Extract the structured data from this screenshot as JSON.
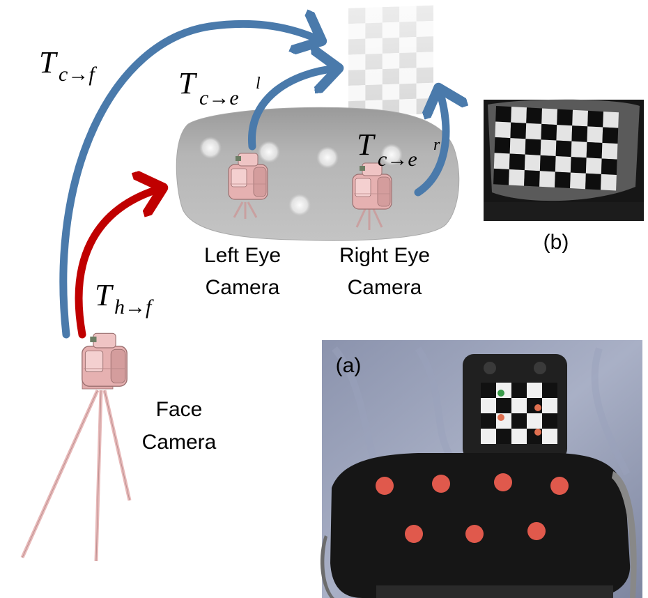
{
  "transforms": {
    "camera_to_face": {
      "main": "T",
      "sub": "c→f"
    },
    "camera_to_left_eye": {
      "main": "T",
      "sub": "c→e",
      "sup": "l"
    },
    "camera_to_right_eye": {
      "main": "T",
      "sub": "c→e",
      "sup": "r"
    },
    "head_to_face": {
      "main": "T",
      "sub": "h→f"
    }
  },
  "labels": {
    "left_eye_camera": [
      "Left Eye",
      "Camera"
    ],
    "right_eye_camera": [
      "Right Eye",
      "Camera"
    ],
    "face_camera": [
      "Face",
      "Camera"
    ],
    "panel_a": "(a)",
    "panel_b": "(b)"
  },
  "colors": {
    "blue_arrow": "#4a7aab",
    "red_arrow": "#c00000",
    "camera_body": "#e8b4b4",
    "headset_gray": "#b3b3b3",
    "dot_red": "#e0594c",
    "dot_green": "#3a9a4a"
  }
}
